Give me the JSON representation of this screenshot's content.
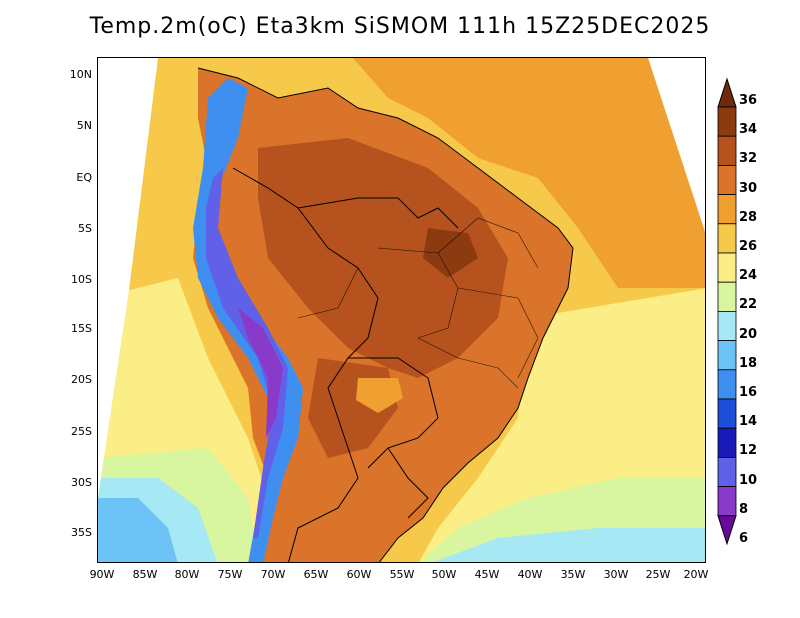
{
  "title": "Temp.2m(oC) Eta3km SiSMOM 111h 15Z25DEC2025",
  "map": {
    "lat_labels": [
      "10N",
      "5N",
      "EQ",
      "5S",
      "10S",
      "15S",
      "20S",
      "25S",
      "30S",
      "35S"
    ],
    "lon_labels": [
      "90W",
      "85W",
      "80W",
      "75W",
      "70W",
      "65W",
      "60W",
      "55W",
      "50W",
      "45W",
      "40W",
      "35W",
      "30W",
      "25W",
      "20W"
    ]
  },
  "colorbar": {
    "levels": [
      "36",
      "34",
      "32",
      "30",
      "28",
      "26",
      "24",
      "22",
      "20",
      "18",
      "16",
      "14",
      "12",
      "10",
      "8",
      "6"
    ],
    "colors": [
      "#6e2a0a",
      "#8c3a10",
      "#b5521e",
      "#d9742a",
      "#f0a030",
      "#f7c94a",
      "#fbee86",
      "#d8f5a0",
      "#a6e8f4",
      "#6ec3f6",
      "#3f8ff0",
      "#1d4fd8",
      "#1a1ab8",
      "#6060e8",
      "#8a3ac8",
      "#6a0a9a"
    ]
  }
}
